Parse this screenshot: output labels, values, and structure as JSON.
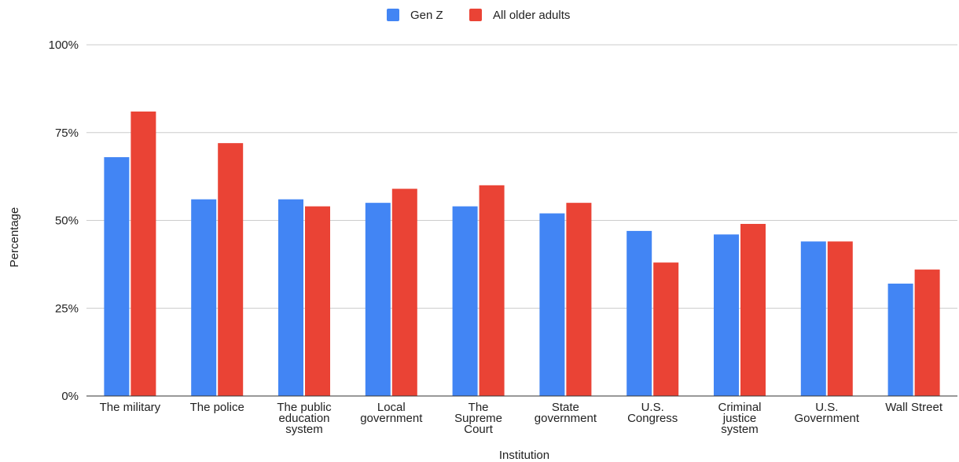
{
  "chart_data": {
    "type": "bar",
    "xlabel": "Institution",
    "ylabel": "Percentage",
    "ylim": [
      0,
      100
    ],
    "yticks": [
      "0%",
      "25%",
      "50%",
      "75%",
      "100%"
    ],
    "ytick_values": [
      0,
      25,
      50,
      75,
      100
    ],
    "grid": true,
    "legend_position": "top-center",
    "categories": [
      "The military",
      "The police",
      "The public education system",
      "Local government",
      "The Supreme Court",
      "State government",
      "U.S. Congress",
      "Criminal justice system",
      "U.S. Government",
      "Wall Street"
    ],
    "category_lines": [
      [
        "The military"
      ],
      [
        "The police"
      ],
      [
        "The public",
        "education",
        "system"
      ],
      [
        "Local",
        "government"
      ],
      [
        "The",
        "Supreme",
        "Court"
      ],
      [
        "State",
        "government"
      ],
      [
        "U.S.",
        "Congress"
      ],
      [
        "Criminal",
        "justice",
        "system"
      ],
      [
        "U.S.",
        "Government"
      ],
      [
        "Wall Street"
      ]
    ],
    "series": [
      {
        "name": "Gen Z",
        "color": "#4285f4",
        "values": [
          68,
          56,
          56,
          55,
          54,
          52,
          47,
          46,
          44,
          32
        ]
      },
      {
        "name": "All older adults",
        "color": "#ea4335",
        "values": [
          81,
          72,
          54,
          59,
          60,
          55,
          38,
          49,
          44,
          36
        ]
      }
    ]
  }
}
